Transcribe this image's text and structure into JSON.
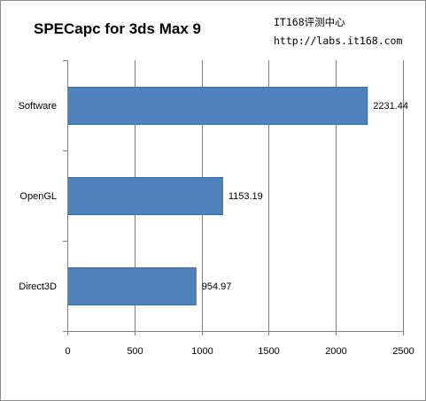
{
  "watermark": {
    "line1": "IT168评测中心",
    "line2": "http://labs.it168.com"
  },
  "colors": {
    "bar": "#4f81bd",
    "bar_edge": "#3d6aa3",
    "grid": "#7f7f7f",
    "axis": "#7f7f7f",
    "frame": "#8c8c8c",
    "text": "#000000"
  },
  "chart_data": {
    "type": "bar",
    "orientation": "horizontal",
    "title": "SPECapc for 3ds Max 9",
    "xlabel": "",
    "ylabel": "",
    "categories": [
      "Software",
      "OpenGL",
      "Direct3D"
    ],
    "values": [
      2231.44,
      1153.19,
      954.97
    ],
    "value_labels": [
      "2231.44",
      "1153.19",
      "954.97"
    ],
    "xlim": [
      0,
      2500
    ],
    "xticks": [
      0,
      500,
      1000,
      1500,
      2000,
      2500
    ],
    "xtick_labels": [
      "0",
      "500",
      "1000",
      "1500",
      "2000",
      "2500"
    ],
    "grid": true,
    "legend": "none"
  }
}
